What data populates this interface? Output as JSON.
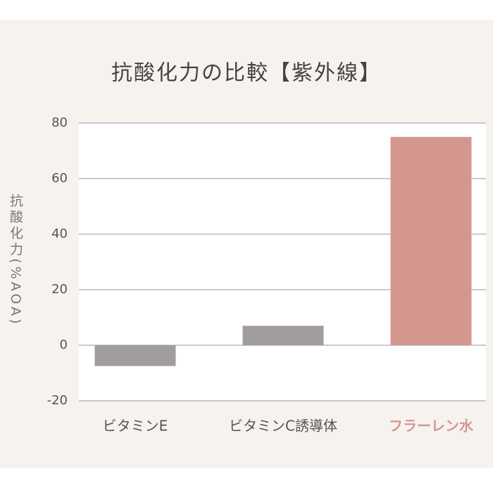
{
  "chart_data": {
    "type": "bar",
    "title": "抗酸化力の比較【紫外線】",
    "y_label": "抗酸化力(%AOA)",
    "categories": [
      "ビタミンE",
      "ビタミンC誘導体",
      "フラーレン水"
    ],
    "values": [
      -7.5,
      7,
      75
    ],
    "colors": [
      "#a29d9d",
      "#a29d9d",
      "#d4978f"
    ],
    "category_colors": [
      "#555555",
      "#555555",
      "#d4978f"
    ],
    "ylim": [
      -20,
      80
    ],
    "yticks": [
      -20,
      0,
      20,
      40,
      60,
      80
    ],
    "grid": true
  }
}
